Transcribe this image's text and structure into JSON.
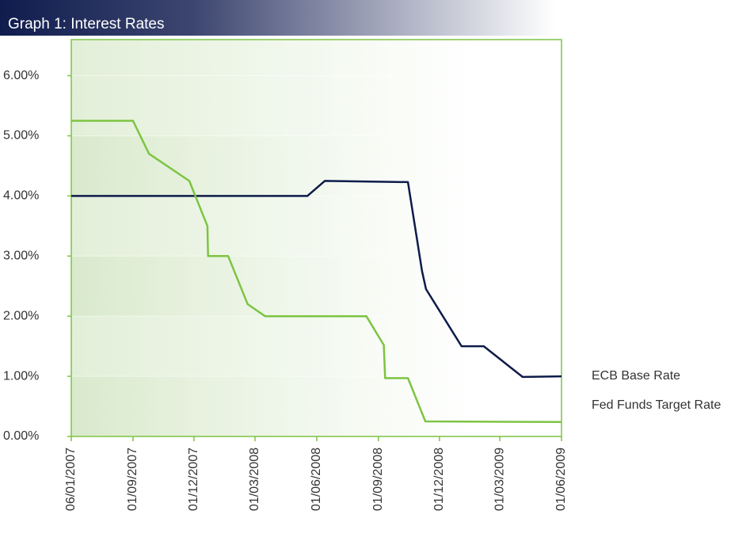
{
  "chart_data": {
    "type": "line",
    "title": "Graph 1: Interest Rates",
    "xlim": [
      "2007-06-01",
      "2009-06-01"
    ],
    "xticks": [
      {
        "value": "2007-06-01",
        "label": "06/01/2007"
      },
      {
        "value": "2007-09-01",
        "label": "01/09/2007"
      },
      {
        "value": "2007-12-01",
        "label": "01/12/2007"
      },
      {
        "value": "2008-03-01",
        "label": "01/03/2008"
      },
      {
        "value": "2008-06-01",
        "label": "01/06/2008"
      },
      {
        "value": "2008-09-01",
        "label": "01/09/2008"
      },
      {
        "value": "2008-12-01",
        "label": "01/12/2008"
      },
      {
        "value": "2009-03-01",
        "label": "01/03/2009"
      },
      {
        "value": "2009-06-01",
        "label": "01/06/2009"
      }
    ],
    "ylim": [
      0,
      6.6
    ],
    "yticks": [
      {
        "value": 0,
        "label": "0.00%"
      },
      {
        "value": 1,
        "label": "1.00%"
      },
      {
        "value": 2,
        "label": "2.00%"
      },
      {
        "value": 3,
        "label": "3.00%"
      },
      {
        "value": 4,
        "label": "4.00%"
      },
      {
        "value": 5,
        "label": "5.00%"
      },
      {
        "value": 6,
        "label": "6.00%"
      }
    ],
    "grid": true,
    "legend": "right",
    "series": [
      {
        "name": "ECB Base Rate",
        "color": "#0d1b4a",
        "x": [
          "2007-06-01",
          "2008-05-18",
          "2008-06-13",
          "2008-10-15",
          "2008-11-05",
          "2008-11-11",
          "2009-01-03",
          "2009-02-05",
          "2009-04-04",
          "2009-06-01"
        ],
        "values": [
          4.0,
          4.0,
          4.25,
          4.23,
          2.75,
          2.45,
          1.5,
          1.5,
          0.99,
          1.0
        ]
      },
      {
        "name": "Fed Funds Target Rate",
        "color": "#7dc443",
        "x": [
          "2007-06-01",
          "2007-09-01",
          "2007-09-25",
          "2007-11-24",
          "2007-12-21",
          "2007-12-22",
          "2008-01-21",
          "2008-02-19",
          "2008-03-16",
          "2008-08-14",
          "2008-09-09",
          "2008-09-11",
          "2008-10-15",
          "2008-11-10",
          "2009-06-01"
        ],
        "values": [
          5.25,
          5.25,
          4.7,
          4.25,
          3.5,
          3.0,
          3.0,
          2.2,
          2.0,
          2.0,
          1.52,
          0.97,
          0.97,
          0.25,
          0.24
        ]
      }
    ]
  }
}
